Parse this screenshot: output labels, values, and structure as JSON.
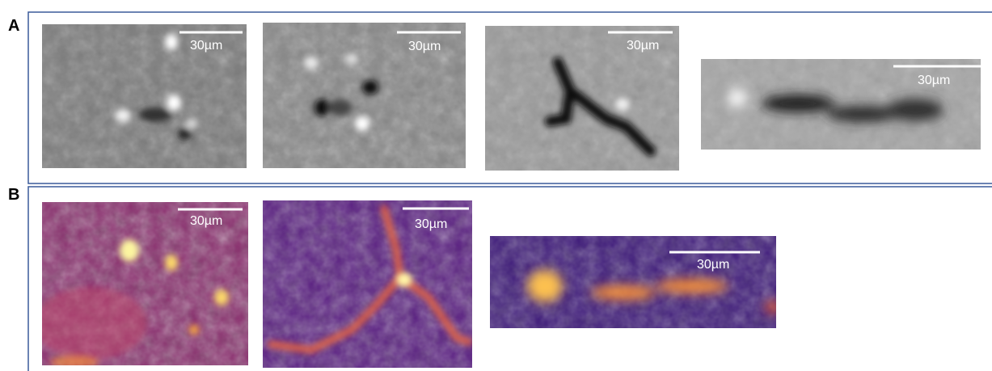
{
  "panels": [
    {
      "label": "A",
      "images": [
        {
          "scale_bar": "30µm"
        },
        {
          "scale_bar": "30µm"
        },
        {
          "scale_bar": "30µm"
        },
        {
          "scale_bar": "30µm"
        }
      ]
    },
    {
      "label": "B",
      "images": [
        {
          "scale_bar": "30µm"
        },
        {
          "scale_bar": "30µm"
        },
        {
          "scale_bar": "30µm"
        }
      ]
    }
  ]
}
